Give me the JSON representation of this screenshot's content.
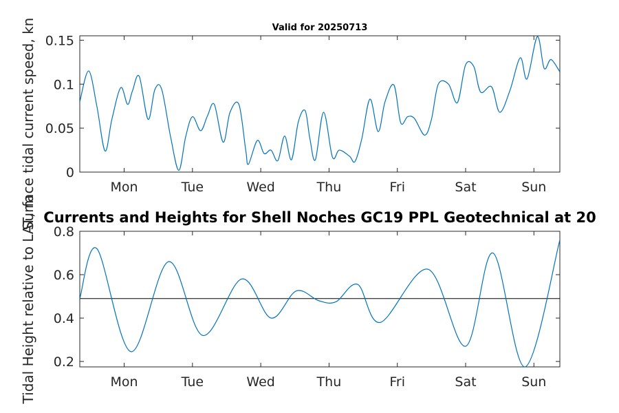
{
  "chart_data": [
    {
      "type": "line",
      "title": "Valid for 20250713",
      "ylabel": "Surface tidal current speed, kn",
      "xlabel": "",
      "x_tick_labels": [
        "Mon",
        "Tue",
        "Wed",
        "Thu",
        "Fri",
        "Sat",
        "Sun"
      ],
      "x_ticks_day": [
        1,
        2,
        3,
        4,
        5,
        6,
        7
      ],
      "xlim_day": [
        0.35,
        7.38
      ],
      "ylim": [
        0,
        0.155
      ],
      "y_ticks": [
        0,
        0.05,
        0.1,
        0.15
      ],
      "y_tick_labels": [
        "0",
        "0.05",
        "0.1",
        "0.15"
      ],
      "grid": false,
      "series": [
        {
          "color": "#0072BD",
          "x_day": [
            0.35,
            0.48,
            0.6,
            0.72,
            0.82,
            0.95,
            1.05,
            1.12,
            1.22,
            1.35,
            1.45,
            1.55,
            1.68,
            1.8,
            1.9,
            2.0,
            2.12,
            2.22,
            2.32,
            2.45,
            2.55,
            2.68,
            2.78,
            2.82,
            2.95,
            3.05,
            3.15,
            3.25,
            3.35,
            3.45,
            3.55,
            3.65,
            3.72,
            3.8,
            3.92,
            4.05,
            4.15,
            4.3,
            4.38,
            4.48,
            4.6,
            4.72,
            4.82,
            4.95,
            5.05,
            5.15,
            5.25,
            5.4,
            5.5,
            5.6,
            5.75,
            5.88,
            6.0,
            6.12,
            6.22,
            6.38,
            6.5,
            6.65,
            6.8,
            6.9,
            7.05,
            7.15,
            7.25,
            7.38
          ],
          "values": [
            0.08,
            0.115,
            0.075,
            0.024,
            0.06,
            0.096,
            0.077,
            0.092,
            0.109,
            0.06,
            0.094,
            0.094,
            0.04,
            0.002,
            0.04,
            0.063,
            0.047,
            0.064,
            0.077,
            0.034,
            0.068,
            0.077,
            0.025,
            0.009,
            0.036,
            0.021,
            0.025,
            0.013,
            0.041,
            0.014,
            0.057,
            0.07,
            0.038,
            0.014,
            0.068,
            0.017,
            0.025,
            0.018,
            0.012,
            0.038,
            0.083,
            0.046,
            0.08,
            0.099,
            0.056,
            0.063,
            0.061,
            0.042,
            0.06,
            0.1,
            0.1,
            0.079,
            0.122,
            0.12,
            0.091,
            0.097,
            0.068,
            0.093,
            0.13,
            0.106,
            0.154,
            0.118,
            0.128,
            0.114
          ]
        }
      ]
    },
    {
      "type": "line",
      "title": "Currents and Heights for Shell Noches   GC19 PPL  Geotechnical at 20",
      "ylabel": "Tidal Height relative to LAT, m",
      "xlabel": "",
      "x_tick_labels": [
        "Mon",
        "Tue",
        "Wed",
        "Thu",
        "Fri",
        "Sat",
        "Sun"
      ],
      "x_ticks_day": [
        1,
        2,
        3,
        4,
        5,
        6,
        7
      ],
      "xlim_day": [
        0.35,
        7.38
      ],
      "ylim": [
        0.175,
        0.8
      ],
      "y_ticks": [
        0.2,
        0.4,
        0.6,
        0.8
      ],
      "y_tick_labels": [
        "0.2",
        "0.4",
        "0.6",
        "0.8"
      ],
      "grid": false,
      "reference_line": 0.49,
      "series": [
        {
          "color": "#0072BD",
          "x_day": [
            0.35,
            0.6,
            1.1,
            1.65,
            2.15,
            2.72,
            3.15,
            3.52,
            3.85,
            4.1,
            4.42,
            4.75,
            5.45,
            6.0,
            6.4,
            6.87,
            7.38
          ],
          "values": [
            0.49,
            0.72,
            0.245,
            0.66,
            0.32,
            0.58,
            0.4,
            0.525,
            0.48,
            0.475,
            0.555,
            0.38,
            0.625,
            0.27,
            0.7,
            0.175,
            0.76
          ]
        }
      ]
    }
  ]
}
